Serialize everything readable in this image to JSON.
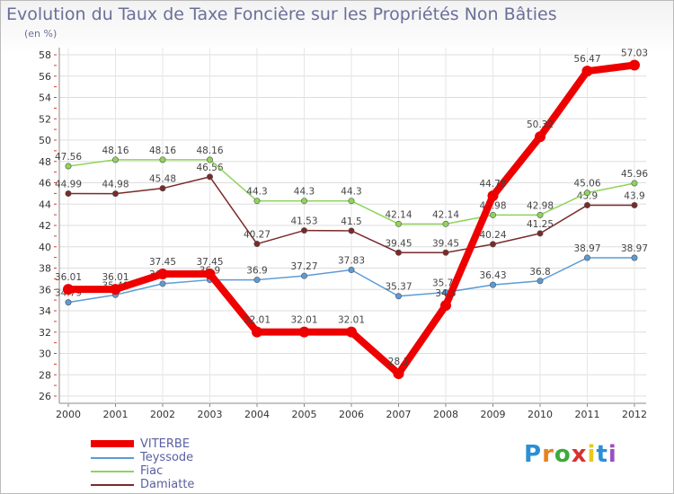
{
  "header": {
    "title": "Evolution du Taux de Taxe Foncière sur les Propriétés Non Bâties",
    "unit": "(en %)"
  },
  "logo": {
    "letters": [
      "P",
      "r",
      "o",
      "x",
      "i",
      "t",
      "i"
    ],
    "colors": [
      "#2a8fd6",
      "#e8821e",
      "#3caa3c",
      "#d93030",
      "#e8c81e",
      "#2a8fd6",
      "#9a4fc0"
    ]
  },
  "chart_data": {
    "type": "line",
    "title": "Evolution du Taux de Taxe Foncière sur les Propriétés Non Bâties",
    "ylabel": "(en %)",
    "xlabel": "",
    "ylim": [
      26,
      58
    ],
    "yticks": [
      26,
      28,
      30,
      32,
      34,
      36,
      38,
      40,
      42,
      44,
      46,
      48,
      50,
      52,
      54,
      56,
      58
    ],
    "categories": [
      "2000",
      "2001",
      "2002",
      "2003",
      "2004",
      "2005",
      "2006",
      "2007",
      "2008",
      "2009",
      "2010",
      "2011",
      "2012"
    ],
    "grid": true,
    "legend_position": "bottom-left",
    "series": [
      {
        "name": "VITERBE",
        "color": "#ee0000",
        "values": [
          36.01,
          36.01,
          37.45,
          37.45,
          32.01,
          32.01,
          32.01,
          28.1,
          34.5,
          44.78,
          50.32,
          56.47,
          57.03
        ],
        "labels": [
          "36.01",
          "36.01",
          "37.45",
          "37.45",
          "32.01",
          "32.01",
          "32.01",
          "28.1",
          "34.5",
          "44.78",
          "50.32",
          "56.47",
          "57.03"
        ]
      },
      {
        "name": "Teyssode",
        "color": "#5b9bd5",
        "values": [
          34.79,
          35.49,
          36.54,
          36.9,
          36.9,
          37.27,
          37.83,
          35.37,
          35.73,
          36.43,
          36.8,
          38.97,
          38.97
        ],
        "labels": [
          "34.79",
          "35.49",
          "36.54",
          "36.9",
          "36.9",
          "37.27",
          "37.83",
          "35.37",
          "35.73",
          "36.43",
          "36.8",
          "38.97",
          "38.97"
        ]
      },
      {
        "name": "Fiac",
        "color": "#8fd45a",
        "values": [
          47.56,
          48.16,
          48.16,
          48.16,
          44.3,
          44.3,
          44.3,
          42.14,
          42.14,
          42.98,
          42.98,
          45.06,
          45.96
        ],
        "labels": [
          "47.56",
          "48.16",
          "48.16",
          "48.16",
          "44.3",
          "44.3",
          "44.3",
          "42.14",
          "42.14",
          "42.98",
          "42.98",
          "45.06",
          "45.96"
        ]
      },
      {
        "name": "Damiatte",
        "color": "#7a2a2a",
        "values": [
          44.99,
          44.98,
          45.48,
          46.56,
          40.27,
          41.53,
          41.5,
          39.45,
          39.45,
          40.24,
          41.25,
          43.9,
          43.9
        ],
        "labels": [
          "44.99",
          "44.98",
          "45.48",
          "46.56",
          "40.27",
          "41.53",
          "41.5",
          "39.45",
          "39.45",
          "40.24",
          "41.25",
          "43.9",
          "43.9"
        ]
      }
    ]
  }
}
